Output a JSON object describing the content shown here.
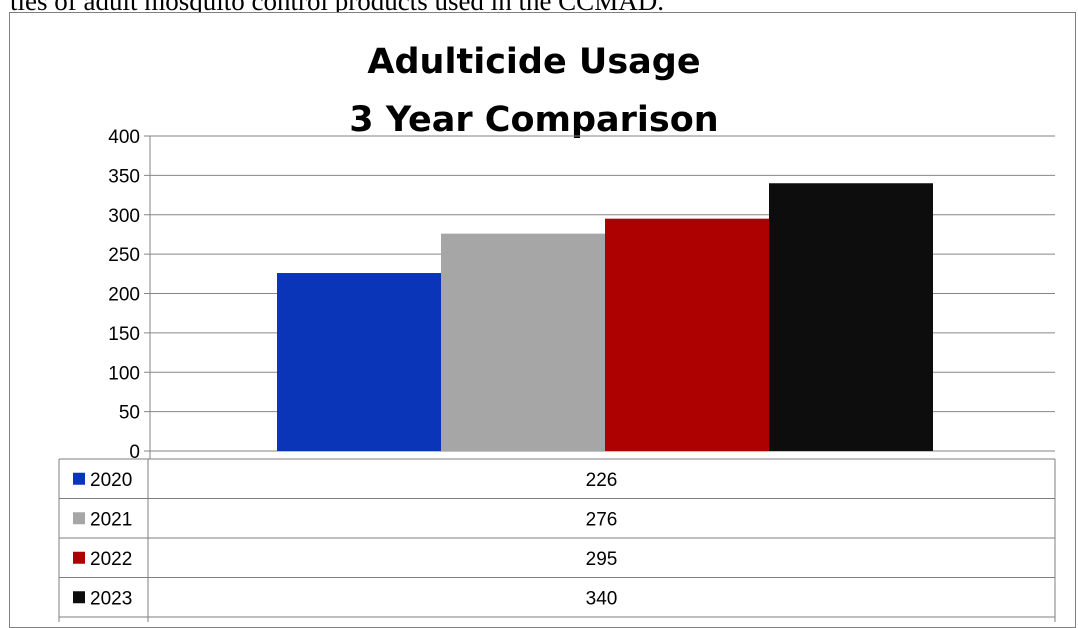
{
  "page": {
    "header_text": "ties of adult mosquito control products used in the CCMAD."
  },
  "chart_data": {
    "type": "bar",
    "title_lines": [
      "Adulticide Usage",
      "3 Year Comparison"
    ],
    "xlabel": "",
    "ylabel": "",
    "ylim": [
      0,
      400
    ],
    "y_ticks": [
      "0",
      "50",
      "100",
      "150",
      "200",
      "250",
      "300",
      "350",
      "400"
    ],
    "grid": true,
    "legend": "data-table-below",
    "series": [
      {
        "name": "2020",
        "value": 226,
        "color": "#0a35b8"
      },
      {
        "name": "2021",
        "value": 276,
        "color": "#a6a6a6"
      },
      {
        "name": "2022",
        "value": 295,
        "color": "#ad0000"
      },
      {
        "name": "2023",
        "value": 340,
        "color": "#0d0d0d"
      }
    ]
  }
}
